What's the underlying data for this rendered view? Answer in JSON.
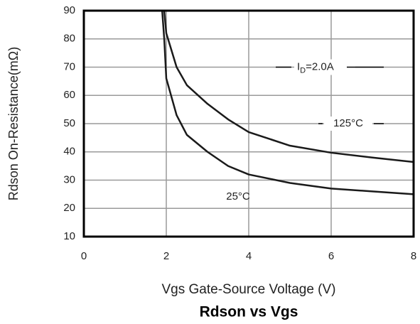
{
  "chart_data": {
    "type": "line",
    "title": "Rdson vs Vgs",
    "x_label": "Vgs Gate-Source Voltage (V)",
    "y_label": "Rdson On-Resistance(mΩ)",
    "x": [
      1.9,
      1.95,
      2,
      2.25,
      2.5,
      3,
      3.5,
      4,
      5,
      6,
      7,
      8
    ],
    "series": [
      {
        "name": "125°C",
        "color": "#1a1a1a",
        "values": [
          null,
          90,
          82,
          70,
          63.6,
          57,
          51.5,
          47,
          42.2,
          39.7,
          38,
          36.4
        ]
      },
      {
        "name": "25°C",
        "color": "#1a1a1a",
        "values": [
          90,
          80,
          66,
          53,
          46,
          40,
          35,
          32,
          29,
          27,
          26,
          25
        ]
      }
    ],
    "annotations": [
      {
        "label": [
          "I",
          "D",
          "=2.0A"
        ]
      }
    ],
    "xlim": [
      0,
      8
    ],
    "ylim": [
      10,
      90
    ],
    "xticks": [
      0,
      2,
      4,
      6,
      8
    ],
    "yticks": [
      10,
      20,
      30,
      40,
      50,
      60,
      70,
      80,
      90
    ],
    "grid": true
  }
}
